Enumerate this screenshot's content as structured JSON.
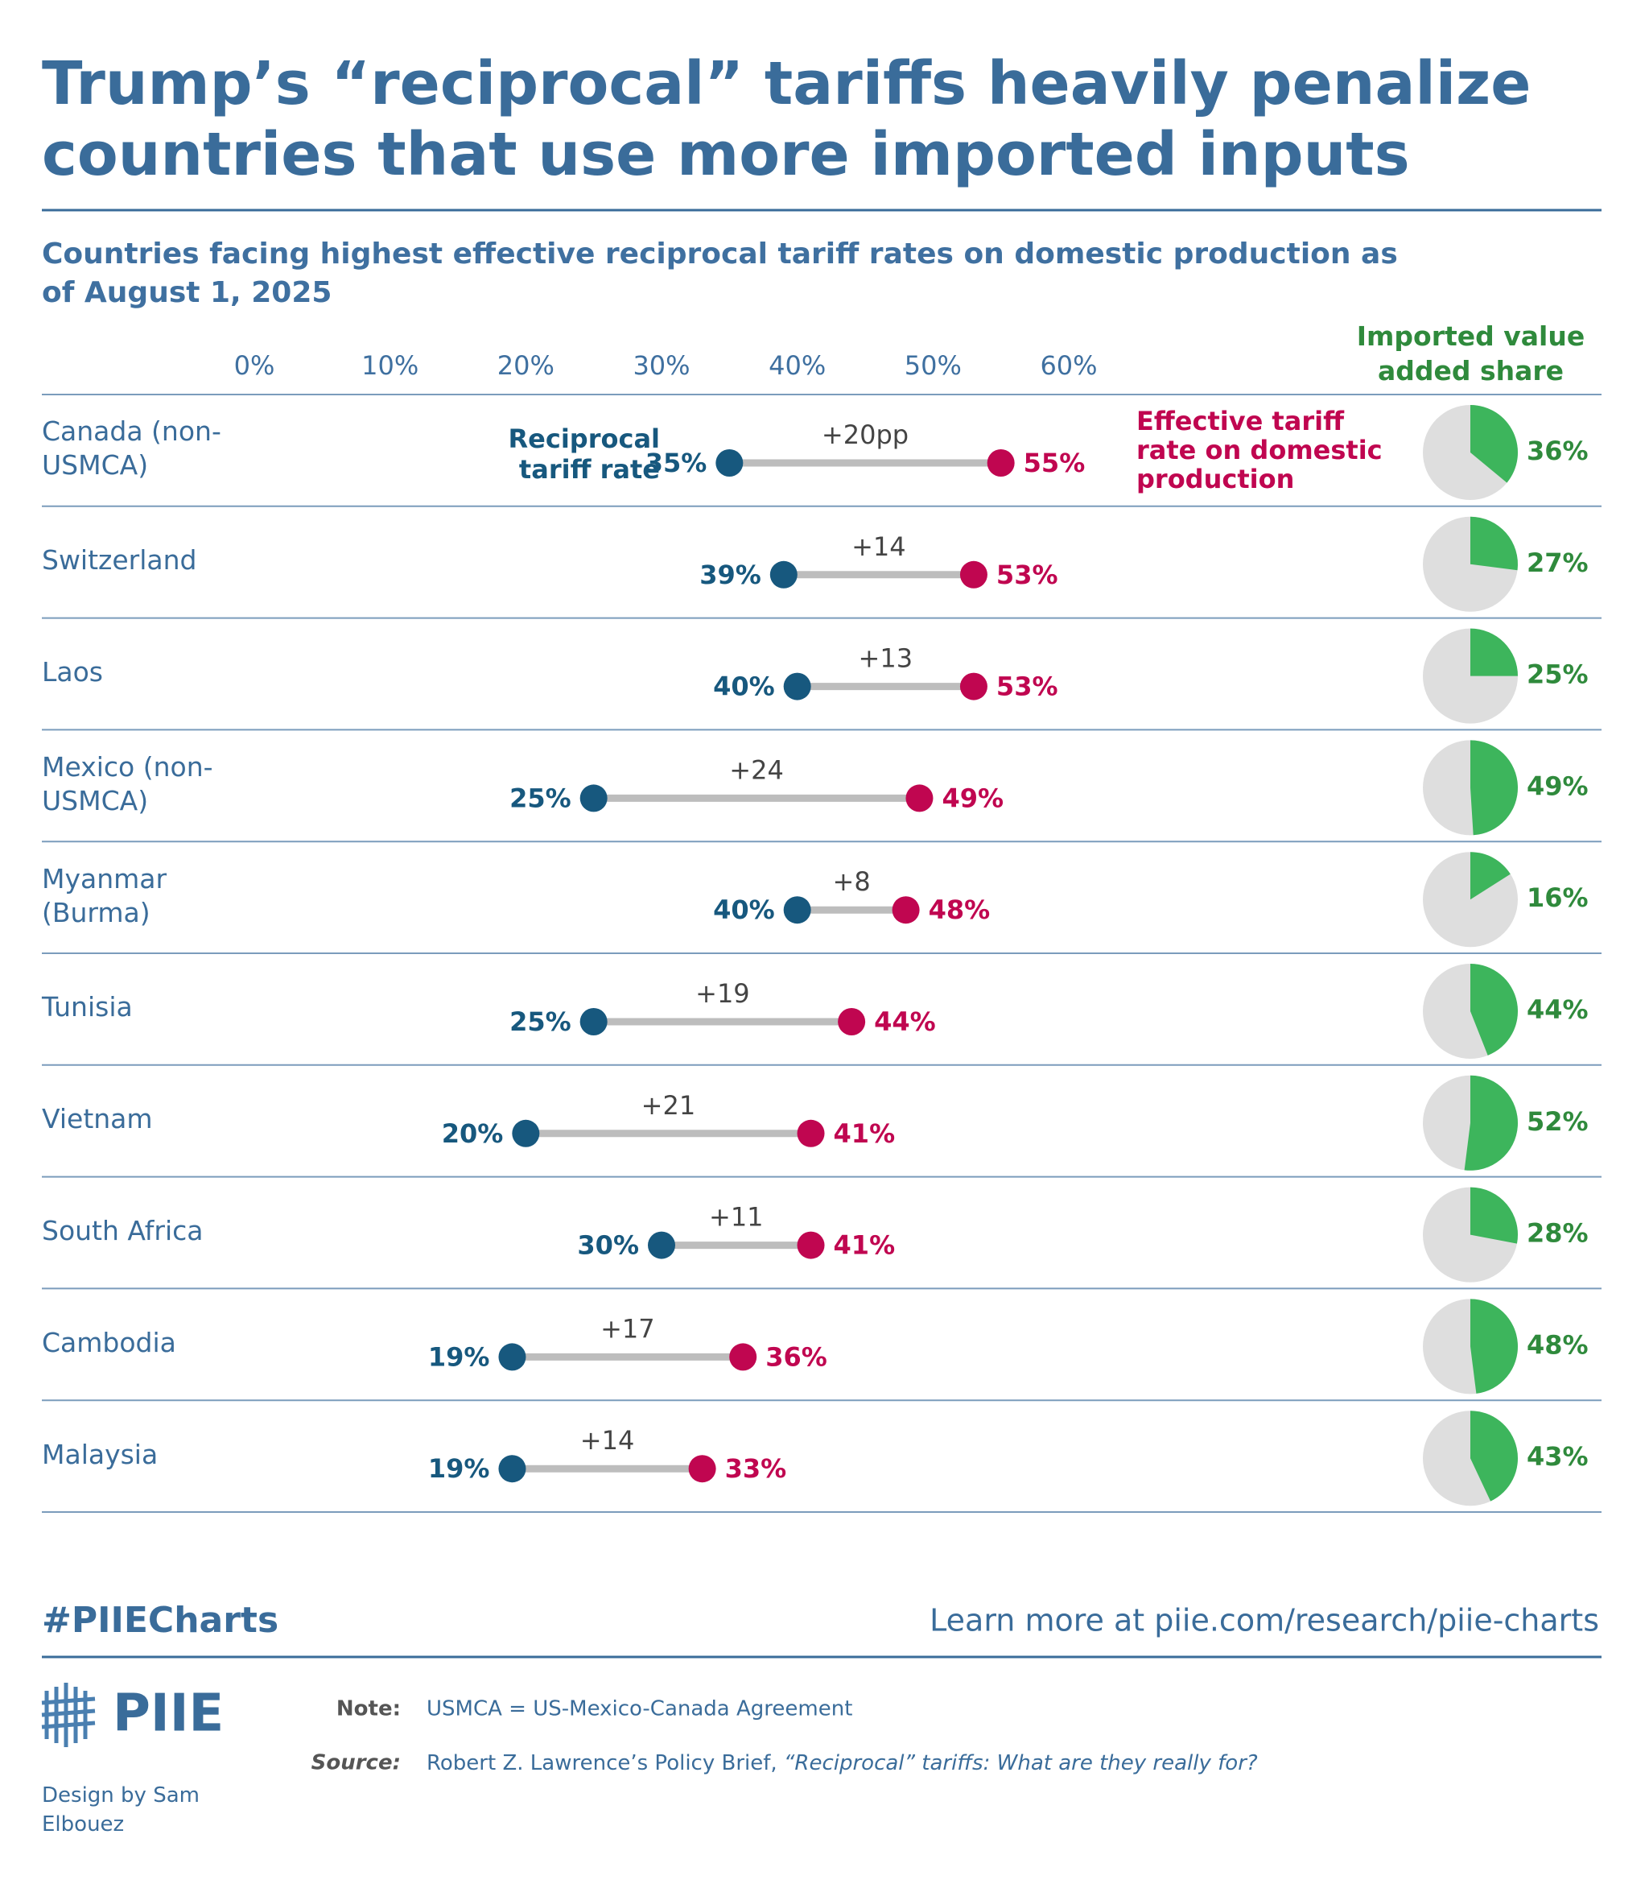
{
  "title": "Trump’s “reciprocal” tariffs heavily penalize countries that use more imported inputs",
  "chart_data": {
    "type": "dumbbell",
    "subtitle": "Countries facing highest effective reciprocal tariff rates on domestic production as of August 1, 2025",
    "categories": [
      "Canada (non-USMCA)",
      "Switzerland",
      "Laos",
      "Mexico (non-USMCA)",
      "Myanmar (Burma)",
      "Tunisia",
      "Vietnam",
      "South Africa",
      "Cambodia",
      "Malaysia"
    ],
    "series": [
      {
        "name": "Reciprocal tariff rate",
        "color": "#17587e",
        "values": [
          35,
          39,
          40,
          25,
          40,
          25,
          20,
          30,
          19,
          19
        ],
        "value_labels": [
          "35%",
          "39%",
          "40%",
          "25%",
          "40%",
          "25%",
          "20%",
          "30%",
          "19%",
          "19%"
        ]
      },
      {
        "name": "Effective tariff rate on domestic production",
        "color": "#c00650",
        "values": [
          55,
          53,
          53,
          49,
          48,
          44,
          41,
          41,
          36,
          33
        ],
        "value_labels": [
          "55%",
          "53%",
          "53%",
          "49%",
          "48%",
          "44%",
          "41%",
          "41%",
          "36%",
          "33%"
        ]
      }
    ],
    "difference": {
      "color": "#bdbdbd",
      "values": [
        20,
        14,
        13,
        24,
        8,
        19,
        21,
        11,
        17,
        14
      ],
      "value_labels": [
        "+20pp",
        "+14",
        "+13",
        "+24",
        "+8",
        "+19",
        "+21",
        "+11",
        "+17",
        "+14"
      ]
    },
    "imported_share": {
      "title": "Imported value added share",
      "color": "#3db55c",
      "values": [
        36,
        27,
        25,
        49,
        16,
        44,
        52,
        28,
        48,
        43
      ],
      "value_labels": [
        "36%",
        "27%",
        "25%",
        "49%",
        "16%",
        "44%",
        "52%",
        "28%",
        "48%",
        "43%"
      ]
    },
    "xlim": [
      0,
      60
    ],
    "xticks": [
      {
        "value": 0,
        "label": "0%"
      },
      {
        "value": 10,
        "label": "10%"
      },
      {
        "value": 20,
        "label": "20%"
      },
      {
        "value": 30,
        "label": "30%"
      },
      {
        "value": 40,
        "label": "40%"
      },
      {
        "value": 50,
        "label": "50%"
      },
      {
        "value": 60,
        "label": "60%"
      }
    ]
  },
  "footer": {
    "hashtag": "#PIIECharts",
    "link": "Learn more at piie.com/research/piie-charts",
    "logo": "PIIE",
    "note_label": "Note:",
    "note": "USMCA = US-Mexico-Canada Agreement",
    "source_label": "Source:",
    "source": "Robert Z. Lawrence’s Policy Brief, ",
    "source_title": "“Reciprocal” tariffs: What are they really for?",
    "credit": "Design by Sam Elbouez"
  }
}
